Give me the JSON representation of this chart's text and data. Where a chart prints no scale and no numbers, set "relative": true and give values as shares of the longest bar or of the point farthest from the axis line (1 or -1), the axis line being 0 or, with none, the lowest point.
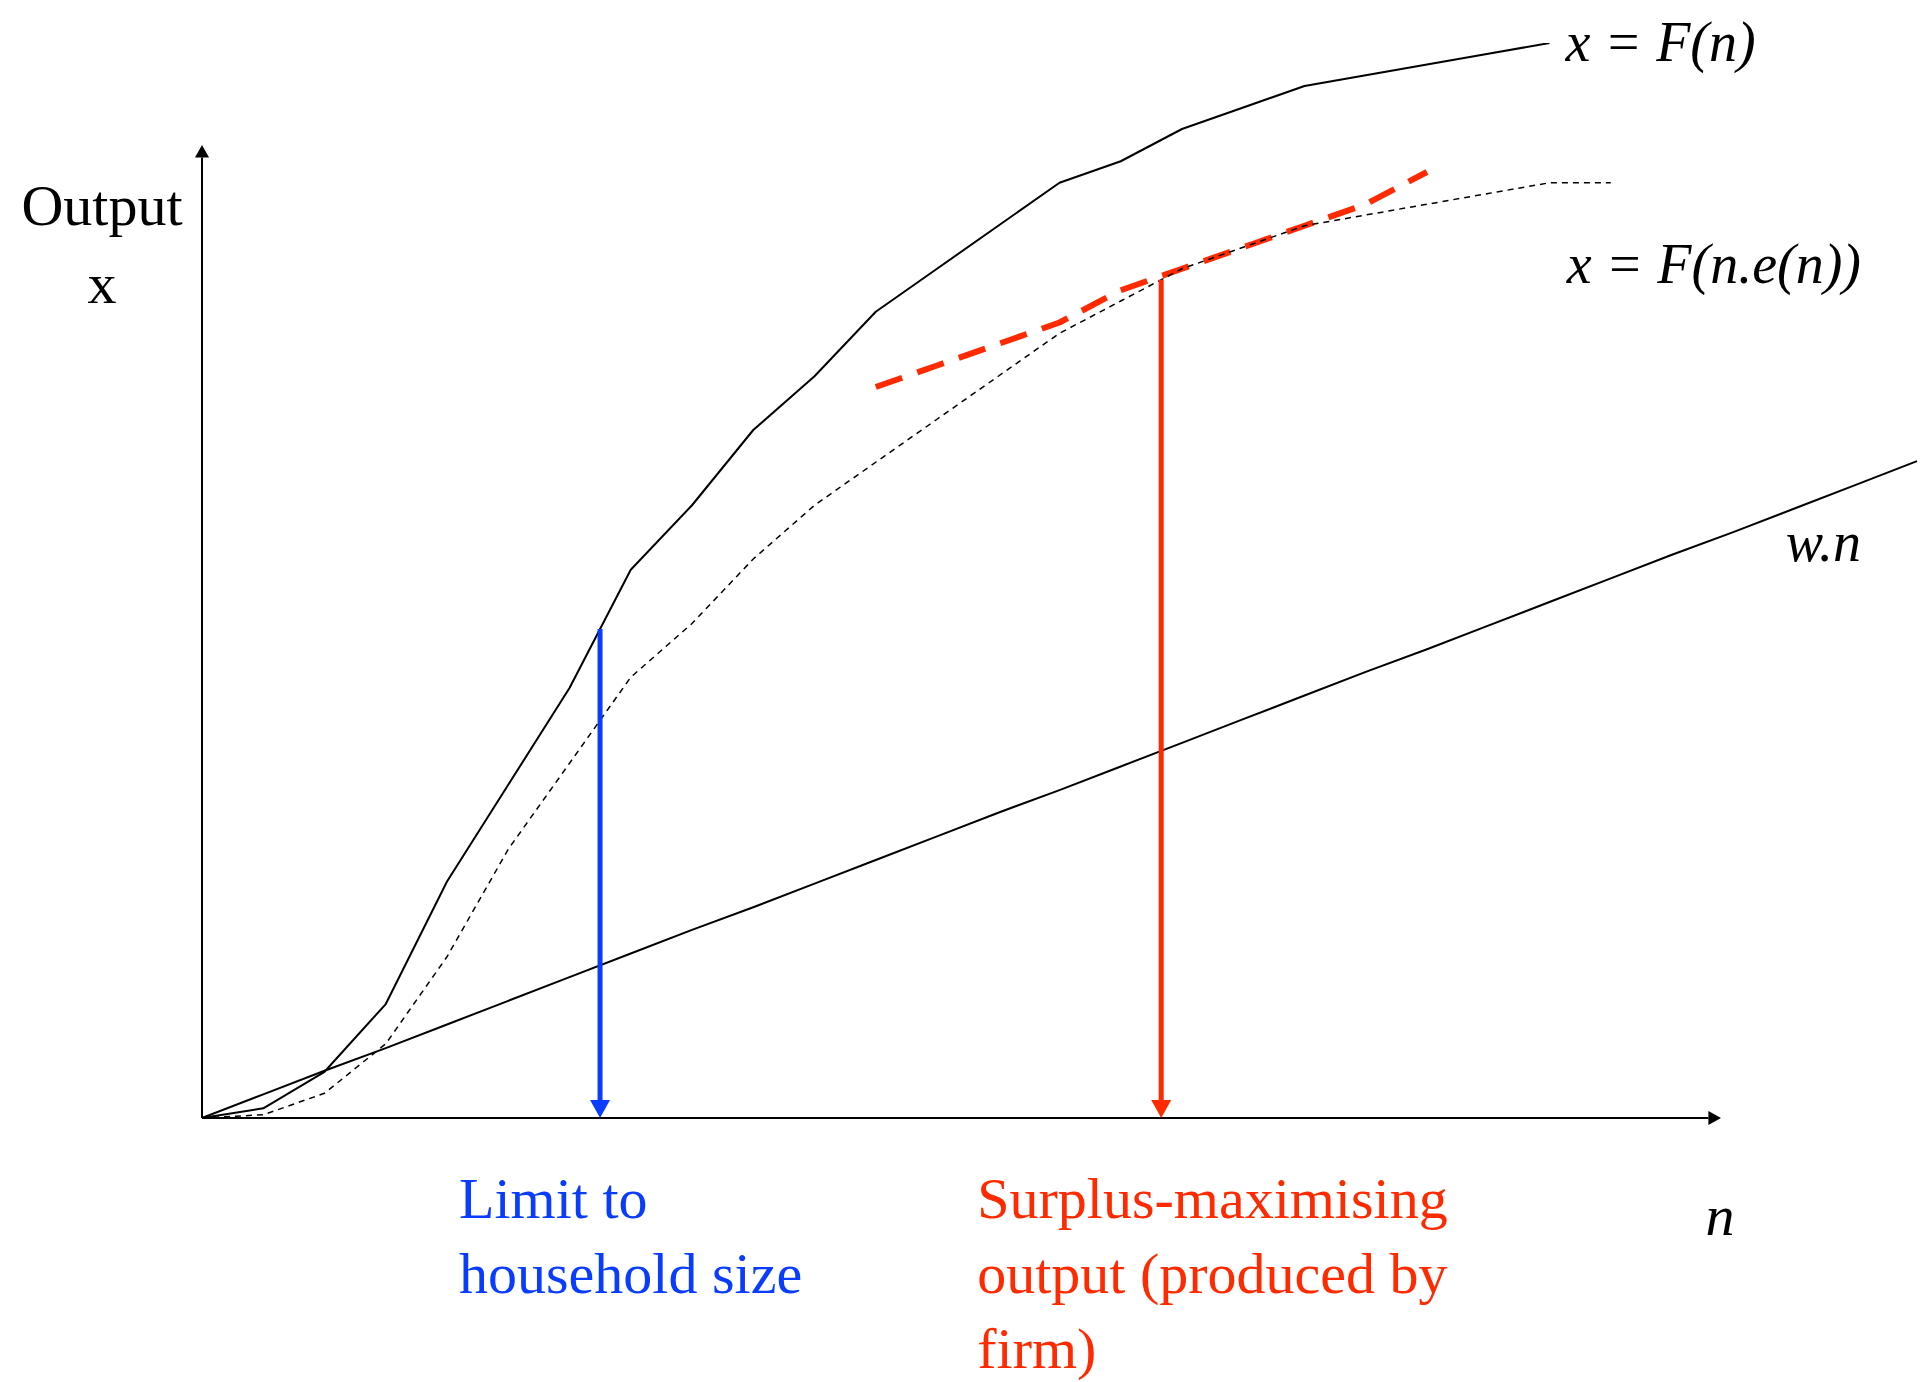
{
  "chart_data": {
    "type": "line",
    "relative": true,
    "xlabel": "n",
    "ylabel": "Output x",
    "categories": [
      null,
      null,
      null,
      null,
      null,
      null,
      null,
      null,
      null,
      null,
      null,
      null,
      null,
      null,
      null,
      null,
      null,
      null,
      null,
      null,
      null,
      null,
      null,
      null,
      null,
      null,
      null,
      null,
      null
    ],
    "tick_labels": false,
    "grid": false,
    "legend": false,
    "marker": "none",
    "series": [
      {
        "name": "x = F(n)",
        "color": "#000000",
        "line_style": "solid",
        "values": [
          0,
          0.009,
          0.043,
          0.106,
          0.22,
          0.31,
          0.4,
          0.51,
          0.57,
          0.64,
          0.69,
          0.75,
          0.79,
          0.83,
          0.87,
          0.89,
          0.92,
          0.94,
          0.96,
          0.97,
          0.98,
          0.99,
          1,
          null,
          null,
          null,
          null,
          null,
          null
        ]
      },
      {
        "name": "x = F(n.e(n))",
        "color": "#000000",
        "line_style": "dotted",
        "values": [
          0,
          0.003,
          0.023,
          0.069,
          0.15,
          0.25,
          0.33,
          0.41,
          0.46,
          0.52,
          0.57,
          0.61,
          0.65,
          0.69,
          0.73,
          0.76,
          0.79,
          0.81,
          0.83,
          0.84,
          0.85,
          0.86,
          0.87,
          0.87,
          null,
          null,
          null,
          null,
          null
        ]
      },
      {
        "name": "w.n",
        "color": "#000000",
        "line_style": "solid",
        "values": [
          0,
          0.022,
          0.044,
          0.065,
          0.087,
          0.109,
          0.131,
          0.153,
          0.175,
          0.196,
          0.218,
          0.24,
          0.262,
          0.284,
          0.305,
          0.327,
          0.349,
          0.371,
          0.393,
          0.415,
          0.436,
          0.458,
          0.48,
          0.502,
          0.524,
          0.545,
          0.567,
          0.589,
          0.611
        ]
      },
      {
        "color": "#ff2a00",
        "line_style": "dashed",
        "values": [
          null,
          null,
          null,
          null,
          null,
          null,
          null,
          null,
          null,
          null,
          null,
          0.68,
          0.7,
          0.72,
          0.74,
          0.77,
          0.79,
          0.81,
          0.83,
          0.85,
          0.88,
          null,
          null,
          null,
          null,
          null,
          null,
          null,
          null
        ]
      }
    ],
    "annotations": [
      "Limit to household size",
      "Surplus-maximising output (produced by firm)"
    ]
  }
}
